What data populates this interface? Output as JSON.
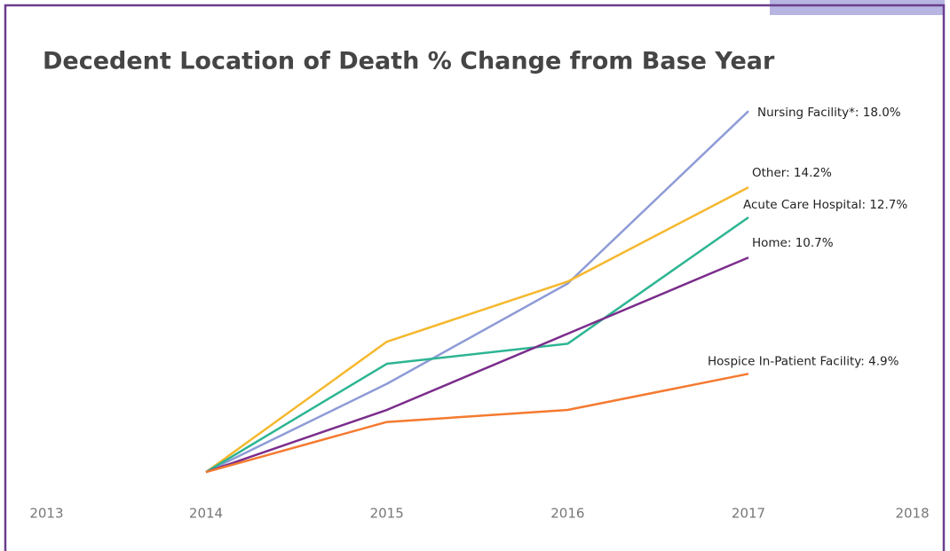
{
  "chart_data": {
    "type": "line",
    "title": "Decedent Location of Death % Change from Base Year",
    "x": [
      2014,
      2015,
      2016,
      2017
    ],
    "xlim": [
      2013,
      2018
    ],
    "xticks": [
      2013,
      2014,
      2015,
      2016,
      2017,
      2018
    ],
    "ylim": [
      -1.5,
      20
    ],
    "series": [
      {
        "label": "Nursing Facility*: 18.0%",
        "color": "#8e9bd6",
        "values": [
          0,
          4.4,
          9.4,
          18.0
        ]
      },
      {
        "label": "Other: 14.2%",
        "color": "#f5b82e",
        "values": [
          0,
          6.5,
          9.5,
          14.2
        ]
      },
      {
        "label": "Acute Care Hospital: 12.7%",
        "color": "#2db592",
        "values": [
          0,
          5.4,
          6.4,
          12.7
        ]
      },
      {
        "label": "Home: 10.7%",
        "color": "#7b2d8b",
        "values": [
          0,
          3.1,
          6.9,
          10.7
        ]
      },
      {
        "label": "Hospice In-Patient Facility: 4.9%",
        "color": "#f47a30",
        "values": [
          0,
          2.5,
          3.1,
          4.9
        ]
      }
    ]
  }
}
